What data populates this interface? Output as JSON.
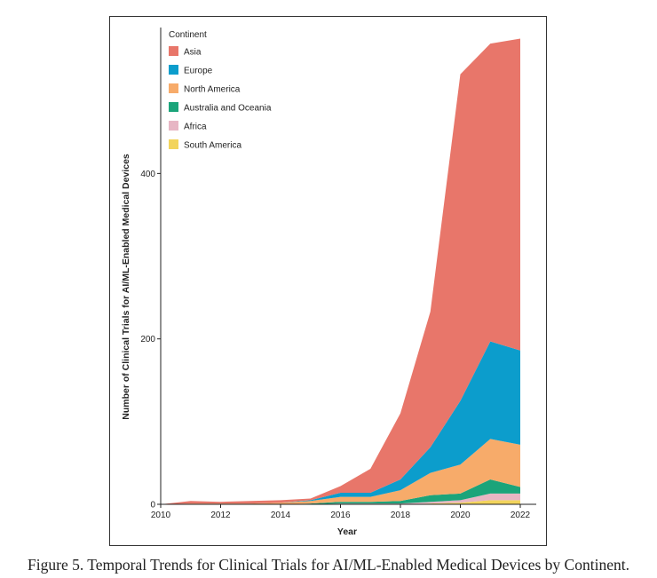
{
  "caption": "Figure 5. Temporal Trends for Clinical Trials for AI/ML-Enabled Medical Devices by Continent.",
  "chart_data": {
    "type": "area",
    "stacked": true,
    "title": "",
    "xlabel": "Year",
    "ylabel": "Number of Clinical Trials for AI/ML-Enabled Medical Devices",
    "xlim": [
      2010,
      2022
    ],
    "ylim": [
      0,
      570
    ],
    "x": [
      2010,
      2011,
      2012,
      2013,
      2014,
      2015,
      2016,
      2017,
      2018,
      2019,
      2020,
      2021,
      2022
    ],
    "x_ticks": [
      "2010",
      "2012",
      "2014",
      "2016",
      "2018",
      "2020",
      "2022"
    ],
    "y_ticks": [
      "0",
      "200",
      "400"
    ],
    "legend_title": "Continent",
    "legend_position": "top-left",
    "series": [
      {
        "name": "South America",
        "color": "#f2d45c",
        "values": [
          0,
          0,
          0,
          0,
          0,
          0,
          0,
          0,
          0,
          1,
          2,
          5,
          5
        ]
      },
      {
        "name": "Africa",
        "color": "#e7b6c4",
        "values": [
          0,
          0,
          0,
          0,
          0,
          0,
          1,
          1,
          1,
          2,
          3,
          8,
          8
        ]
      },
      {
        "name": "Australia and Oceania",
        "color": "#1ba47a",
        "values": [
          0,
          0,
          0,
          0,
          0,
          1,
          2,
          2,
          3,
          8,
          8,
          17,
          8
        ]
      },
      {
        "name": "North America",
        "color": "#f7ab6a",
        "values": [
          0,
          1,
          1,
          1,
          2,
          3,
          6,
          6,
          13,
          27,
          35,
          49,
          51
        ]
      },
      {
        "name": "Europe",
        "color": "#0c9dcc",
        "values": [
          0,
          0,
          0,
          0,
          0,
          1,
          5,
          5,
          13,
          31,
          77,
          118,
          114
        ]
      },
      {
        "name": "Asia",
        "color": "#e8766a",
        "values": [
          0,
          3,
          2,
          3,
          3,
          2,
          8,
          29,
          80,
          164,
          395,
          360,
          377
        ]
      }
    ]
  }
}
